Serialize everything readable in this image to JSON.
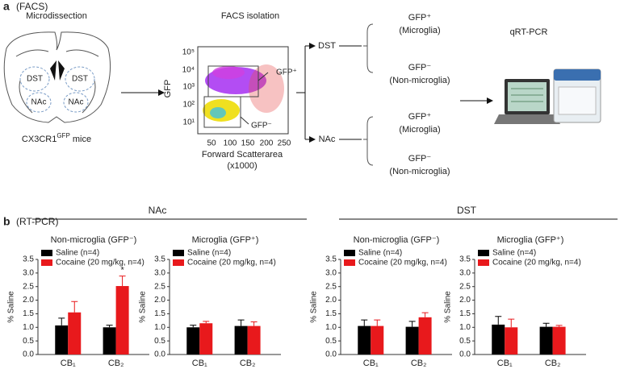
{
  "panel_a": {
    "letter": "a",
    "subtitle": "(FACS)",
    "steps": [
      "Microdissection",
      "FACS isolation",
      "qRT-PCR"
    ],
    "brain_regions": [
      "DST",
      "DST",
      "NAc",
      "NAc"
    ],
    "mouse": {
      "name": "CX3CR1",
      "sup": "GFP",
      "suffix": " mice"
    },
    "facs_plot": {
      "ylabel": "GFP",
      "yticks": [
        "10¹",
        "10²",
        "10³",
        "10⁴",
        "10⁵"
      ],
      "xticks": [
        50,
        100,
        150,
        200,
        250
      ],
      "xlabel": "Forward Scatterarea",
      "xunit": "(x1000)",
      "gates": [
        "GFP⁺",
        "GFP⁻"
      ]
    },
    "regions": [
      {
        "label": "DST",
        "fractions": [
          {
            "name": "GFP⁺",
            "desc": "(Microglia)"
          },
          {
            "name": "GFP⁻",
            "desc": "(Non-microglia)"
          }
        ]
      },
      {
        "label": "NAc",
        "fractions": [
          {
            "name": "GFP⁺",
            "desc": "(Microglia)"
          },
          {
            "name": "GFP⁻",
            "desc": "(Non-microglia)"
          }
        ]
      }
    ]
  },
  "panel_b": {
    "letter": "b",
    "subtitle": "(RT-PCR)",
    "groups": [
      "NAc",
      "DST"
    ]
  },
  "chart_data": [
    {
      "type": "bar",
      "title": "Non-microglia (GFP⁻)",
      "ylabel": "% Saline",
      "categories": [
        "CB₁",
        "CB₂"
      ],
      "series": [
        {
          "name": "Saline (n=4)",
          "color": "#000000",
          "values": [
            1.07,
            1.0
          ],
          "errors": [
            0.27,
            0.08
          ]
        },
        {
          "name": "Cocaine (20 mg/kg, n=4)",
          "color": "#e8191c",
          "values": [
            1.55,
            2.52
          ],
          "errors": [
            0.4,
            0.37
          ]
        }
      ],
      "annotations": [
        "*"
      ],
      "ylim": [
        0,
        3.5
      ],
      "yticks": [
        {
          "value": 0,
          "label": "0.0"
        },
        {
          "value": 0.5,
          "label": "0.5"
        },
        {
          "value": 1,
          "label": "1.0"
        },
        {
          "value": 1.5,
          "label": "1.5"
        },
        {
          "value": 2,
          "label": "2.0"
        },
        {
          "value": 2.5,
          "label": "2.5"
        },
        {
          "value": 3,
          "label": "3.0"
        },
        {
          "value": 3.5,
          "label": "3.5"
        }
      ]
    },
    {
      "type": "bar",
      "title": "Microglia (GFP⁺)",
      "ylabel": "% Saline",
      "categories": [
        "CB₁",
        "CB₂"
      ],
      "series": [
        {
          "name": "Saline (n=4)",
          "color": "#000000",
          "values": [
            1.0,
            1.05
          ],
          "errors": [
            0.08,
            0.22
          ]
        },
        {
          "name": "Cocaine (20 mg/kg, n=4)",
          "color": "#e8191c",
          "values": [
            1.15,
            1.05
          ],
          "errors": [
            0.07,
            0.15
          ]
        }
      ],
      "ylim": [
        0,
        3.5
      ],
      "yticks": [
        {
          "value": 0,
          "label": "0.0"
        },
        {
          "value": 0.5,
          "label": "0.5"
        },
        {
          "value": 1,
          "label": "1.0"
        },
        {
          "value": 1.5,
          "label": "1.5"
        },
        {
          "value": 2,
          "label": "2.0"
        },
        {
          "value": 2.5,
          "label": "2.5"
        },
        {
          "value": 3,
          "label": "3.0"
        },
        {
          "value": 3.5,
          "label": "3.5"
        }
      ]
    },
    {
      "type": "bar",
      "title": "Non-microglia (GFP⁻)",
      "ylabel": "% Saline",
      "categories": [
        "CB₁",
        "CB₂"
      ],
      "series": [
        {
          "name": "Saline (n=4)",
          "color": "#000000",
          "values": [
            1.05,
            1.02
          ],
          "errors": [
            0.22,
            0.2
          ]
        },
        {
          "name": "Cocaine (20 mg/kg, n=4)",
          "color": "#e8191c",
          "values": [
            1.05,
            1.37
          ],
          "errors": [
            0.22,
            0.17
          ]
        }
      ],
      "ylim": [
        0,
        3.5
      ],
      "yticks": [
        {
          "value": 0,
          "label": "0.0"
        },
        {
          "value": 0.5,
          "label": "0.5"
        },
        {
          "value": 1,
          "label": "1.0"
        },
        {
          "value": 1.5,
          "label": "1.5"
        },
        {
          "value": 2,
          "label": "2.0"
        },
        {
          "value": 2.5,
          "label": "2.5"
        },
        {
          "value": 3,
          "label": "3.0"
        },
        {
          "value": 3.5,
          "label": "3.5"
        }
      ]
    },
    {
      "type": "bar",
      "title": "Microglia (GFP⁺)",
      "ylabel": "% Saline",
      "categories": [
        "CB₁",
        "CB₂"
      ],
      "series": [
        {
          "name": "Saline (n=4)",
          "color": "#000000",
          "values": [
            1.1,
            1.02
          ],
          "errors": [
            0.3,
            0.13
          ]
        },
        {
          "name": "Cocaine (20 mg/kg, n=4)",
          "color": "#e8191c",
          "values": [
            1.0,
            1.02
          ],
          "errors": [
            0.3,
            0.05
          ]
        }
      ],
      "ylim": [
        0,
        3.5
      ],
      "yticks": [
        {
          "value": 0,
          "label": "0.0"
        },
        {
          "value": 0.5,
          "label": "0.5"
        },
        {
          "value": 1,
          "label": "1.0"
        },
        {
          "value": 1.5,
          "label": "1.5"
        },
        {
          "value": 2,
          "label": "2.0"
        },
        {
          "value": 2.5,
          "label": "2.5"
        },
        {
          "value": 3,
          "label": "3.0"
        },
        {
          "value": 3.5,
          "label": "3.5"
        }
      ]
    }
  ]
}
